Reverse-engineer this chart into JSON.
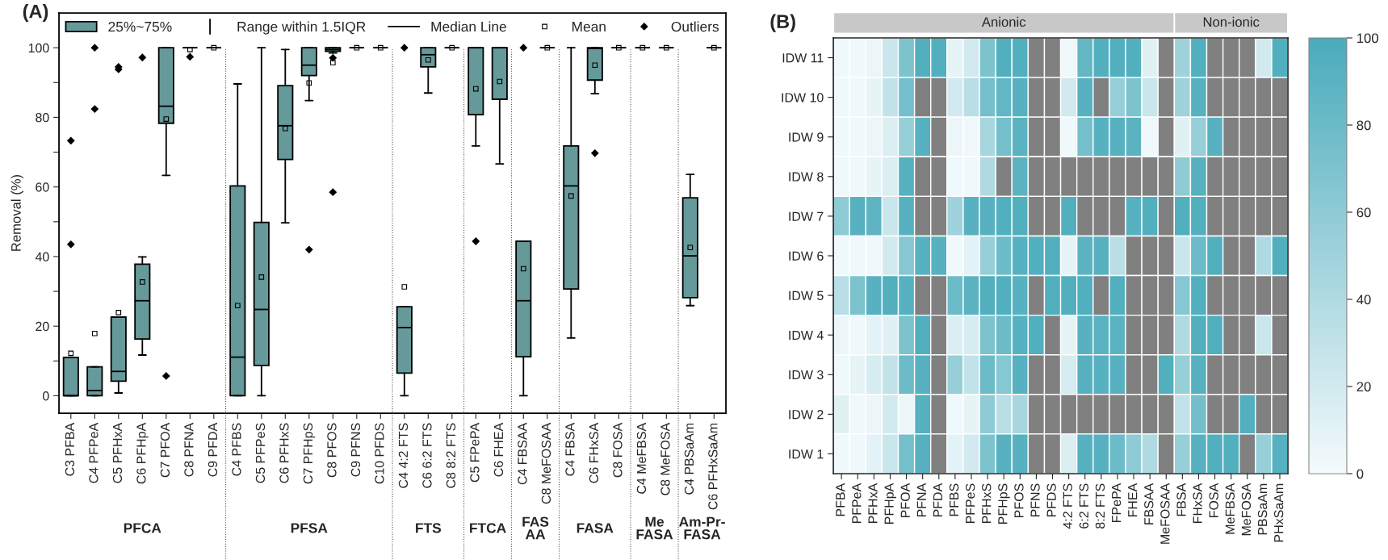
{
  "chart_data": [
    {
      "type": "box",
      "title": "(A)",
      "ylabel": "Removal (%)",
      "categories": [
        "C3 PFBA",
        "C4 PFPeA",
        "C5 PFHxA",
        "C6 PFHpA",
        "C7 PFOA",
        "C8 PFNA",
        "C9 PFDA",
        "C4 PFBS",
        "C5 PFPeS",
        "C6 PFHxS",
        "C7 PFHpS",
        "C8 PFOS",
        "C9 PFNS",
        "C10 PFDS",
        "C4 4:2 FTS",
        "C6 6:2 FTS",
        "C8 8:2 FTS",
        "C5 FPePA",
        "C6 FHEA",
        "C4 FBSAA",
        "C8 MeFOSAA",
        "C4 FBSA",
        "C6 FHxSA",
        "C8 FOSA",
        "C4 MeFBSA",
        "C8 MeFOSA",
        "C4 PBSaAm",
        "C6 PFHxSaAm"
      ],
      "series": [
        {
          "name": "25%~75%",
          "color": "#669999",
          "boxes": [
            {
              "low": 0,
              "q1": 0,
              "median": 0,
              "q3": 11,
              "high": 11,
              "mean": 12.2,
              "outliers": [
                73.3,
                43.5
              ]
            },
            {
              "low": 0,
              "q1": 0,
              "median": 1.5,
              "q3": 8.3,
              "high": 8.3,
              "mean": 17.9,
              "outliers": [
                100,
                82.4
              ]
            },
            {
              "low": 0.8,
              "q1": 4.2,
              "median": 7,
              "q3": 22.6,
              "high": 22.6,
              "mean": 23.9,
              "outliers": [
                94.5,
                93.8
              ]
            },
            {
              "low": 11.7,
              "q1": 16.3,
              "median": 27.3,
              "q3": 37.8,
              "high": 39.9,
              "mean": 32.7,
              "outliers": [
                97.2
              ]
            },
            {
              "low": 63.3,
              "q1": 78.3,
              "median": 83.2,
              "q3": 100,
              "high": 100,
              "mean": 79.5,
              "outliers": [
                5.7
              ]
            },
            {
              "low": 100,
              "q1": 100,
              "median": 100,
              "q3": 100,
              "high": 100,
              "mean": 99.5,
              "outliers": [
                97.4
              ]
            },
            {
              "low": 100,
              "q1": 100,
              "median": 100,
              "q3": 100,
              "high": 100,
              "mean": 100
            },
            {
              "low": 0,
              "q1": 0,
              "median": 11.1,
              "q3": 60.3,
              "high": 89.6,
              "mean": 25.9
            },
            {
              "low": 0,
              "q1": 8.7,
              "median": 24.8,
              "q3": 49.8,
              "high": 100,
              "mean": 34.1
            },
            {
              "low": 49.7,
              "q1": 67.9,
              "median": 77.6,
              "q3": 89.1,
              "high": 99.5,
              "mean": 76.8
            },
            {
              "low": 84.8,
              "q1": 92,
              "median": 95,
              "q3": 100,
              "high": 100,
              "mean": 89.9,
              "outliers": [
                42
              ]
            },
            {
              "low": 98.5,
              "q1": 99,
              "median": 99.5,
              "q3": 100,
              "high": 100,
              "mean": 95.7,
              "outliers": [
                97.1,
                58.5
              ]
            },
            {
              "low": 100,
              "q1": 100,
              "median": 100,
              "q3": 100,
              "high": 100,
              "mean": 100
            },
            {
              "low": 100,
              "q1": 100,
              "median": 100,
              "q3": 100,
              "high": 100,
              "mean": 100
            },
            {
              "low": 0,
              "q1": 6.5,
              "median": 19.6,
              "q3": 25.6,
              "high": 25.6,
              "mean": 31.3,
              "outliers": [
                100
              ]
            },
            {
              "low": 87,
              "q1": 94.5,
              "median": 98,
              "q3": 100,
              "high": 100,
              "mean": 96.5
            },
            {
              "low": 100,
              "q1": 100,
              "median": 100,
              "q3": 100,
              "high": 100,
              "mean": 100
            },
            {
              "low": 71.8,
              "q1": 80.8,
              "median": 100,
              "q3": 100,
              "high": 100,
              "mean": 88.2,
              "outliers": [
                44.4
              ]
            },
            {
              "low": 66.6,
              "q1": 85.2,
              "median": 100,
              "q3": 100,
              "high": 100,
              "mean": 90.3
            },
            {
              "low": 0,
              "q1": 11.2,
              "median": 27.3,
              "q3": 44.4,
              "high": 44.4,
              "mean": 36.5,
              "outliers": [
                100
              ]
            },
            {
              "low": 100,
              "q1": 100,
              "median": 100,
              "q3": 100,
              "high": 100,
              "mean": 100
            },
            {
              "low": 16.6,
              "q1": 30.7,
              "median": 60.3,
              "q3": 71.8,
              "high": 100,
              "mean": 57.4
            },
            {
              "low": 86.8,
              "q1": 90.7,
              "median": 99.8,
              "q3": 100,
              "high": 100,
              "mean": 95,
              "outliers": [
                69.7
              ]
            },
            {
              "low": 100,
              "q1": 100,
              "median": 100,
              "q3": 100,
              "high": 100,
              "mean": 100
            },
            {
              "low": 100,
              "q1": 100,
              "median": 100,
              "q3": 100,
              "high": 100,
              "mean": 100
            },
            {
              "low": 100,
              "q1": 100,
              "median": 100,
              "q3": 100,
              "high": 100,
              "mean": 100
            },
            {
              "low": 25.9,
              "q1": 28.2,
              "median": 40.2,
              "q3": 56.9,
              "high": 63.6,
              "mean": 42.6
            },
            {
              "low": 100,
              "q1": 100,
              "median": 100,
              "q3": 100,
              "high": 100,
              "mean": 100
            }
          ]
        }
      ],
      "ylim": [
        -5,
        110
      ],
      "yticks": [
        0,
        {
          "value": 10,
          "label": null
        },
        20,
        {
          "value": 30,
          "label": null
        },
        40,
        {
          "value": 50,
          "label": null
        },
        60,
        {
          "value": 70,
          "label": null
        },
        80,
        {
          "value": 90,
          "label": null
        },
        100
      ],
      "legend": "top",
      "annotations": [
        "Range within 1.5IQR",
        "Median Line",
        "Mean",
        "Outliers",
        "PFCA",
        "PFSA",
        "FTS",
        "FTCA",
        "FAS\nAA",
        "FASA",
        "Me\nFASA",
        "Am-Pr-\nFASA"
      ]
    },
    {
      "type": "heatmap",
      "title": "(B)",
      "categories": [
        "PFBA",
        "PFPeA",
        "PFHxA",
        "PFHpA",
        "PFOA",
        "PFNA",
        "PFDA",
        "PFBS",
        "PFPeS",
        "PFHxS",
        "PFHpS",
        "PFOS",
        "PFNS",
        "PFDS",
        "4:2 FTS",
        "6:2 FTS",
        "8:2 FTS",
        "FPePA",
        "FHEA",
        "FBSAA",
        "MeFOSAA",
        "FBSA",
        "FHxSA",
        "FOSA",
        "MeFBSA",
        "MeFOSA",
        "PBSaAm",
        "PHxSaAm"
      ],
      "y_categories": [
        "IDW 11",
        "IDW 10",
        "IDW 9",
        "IDW 8",
        "IDW 7",
        "IDW 6",
        "IDW 5",
        "IDW 4",
        "IDW 3",
        "IDW 2",
        "IDW 1"
      ],
      "cells": [
        [
          3,
          3,
          5,
          25,
          70,
          95,
          95,
          8,
          20,
          70,
          95,
          95,
          null,
          null,
          3,
          85,
          95,
          95,
          95,
          12,
          null,
          50,
          95,
          null,
          null,
          null,
          20,
          95
        ],
        [
          3,
          3,
          8,
          30,
          75,
          null,
          null,
          20,
          35,
          75,
          85,
          92,
          null,
          null,
          20,
          92,
          null,
          55,
          70,
          25,
          null,
          50,
          92,
          null,
          null,
          null,
          null,
          null
        ],
        [
          3,
          3,
          5,
          15,
          55,
          92,
          null,
          5,
          2,
          45,
          75,
          90,
          null,
          null,
          3,
          75,
          92,
          92,
          90,
          3,
          null,
          12,
          55,
          92,
          null,
          null,
          null,
          null
        ],
        [
          3,
          3,
          8,
          15,
          92,
          null,
          null,
          3,
          3,
          40,
          null,
          90,
          null,
          null,
          null,
          null,
          null,
          null,
          null,
          null,
          null,
          60,
          92,
          null,
          null,
          null,
          null,
          null
        ],
        [
          60,
          92,
          88,
          25,
          92,
          null,
          null,
          50,
          92,
          92,
          95,
          95,
          null,
          null,
          95,
          null,
          null,
          null,
          92,
          95,
          null,
          95,
          95,
          null,
          null,
          null,
          null,
          null
        ],
        [
          3,
          3,
          3,
          20,
          65,
          92,
          92,
          3,
          10,
          55,
          80,
          92,
          95,
          95,
          8,
          90,
          92,
          35,
          null,
          null,
          null,
          25,
          80,
          95,
          null,
          null,
          40,
          95
        ],
        [
          35,
          70,
          92,
          95,
          92,
          null,
          null,
          80,
          90,
          95,
          95,
          92,
          null,
          95,
          95,
          95,
          null,
          95,
          null,
          null,
          null,
          65,
          95,
          null,
          null,
          null,
          null,
          null
        ],
        [
          5,
          3,
          10,
          12,
          70,
          95,
          null,
          15,
          18,
          70,
          80,
          92,
          95,
          null,
          8,
          92,
          90,
          90,
          null,
          null,
          null,
          40,
          95,
          95,
          null,
          null,
          25,
          null
        ],
        [
          3,
          8,
          18,
          30,
          80,
          92,
          null,
          55,
          30,
          80,
          65,
          92,
          null,
          null,
          18,
          92,
          92,
          92,
          null,
          null,
          95,
          55,
          92,
          null,
          null,
          null,
          null,
          null
        ],
        [
          12,
          3,
          5,
          20,
          5,
          92,
          null,
          3,
          8,
          60,
          35,
          45,
          null,
          null,
          null,
          null,
          null,
          null,
          null,
          null,
          null,
          30,
          75,
          null,
          null,
          95,
          null,
          null
        ],
        [
          3,
          3,
          10,
          25,
          75,
          92,
          null,
          10,
          20,
          70,
          92,
          92,
          null,
          null,
          15,
          92,
          92,
          80,
          60,
          40,
          null,
          55,
          92,
          95,
          95,
          null,
          55,
          92
        ]
      ],
      "clim": [
        0,
        100
      ],
      "cticks": [
        0,
        20,
        40,
        60,
        80,
        100
      ],
      "annotations": [
        "Anionic",
        "Non-ionic"
      ]
    }
  ]
}
